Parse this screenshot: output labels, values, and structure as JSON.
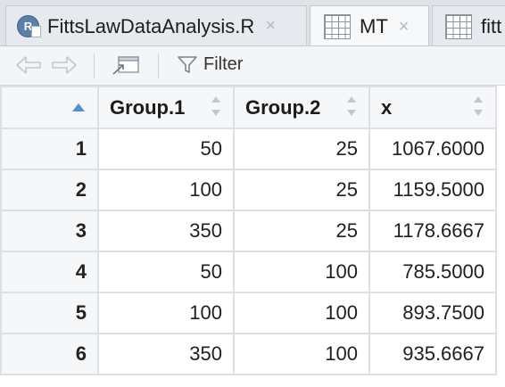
{
  "tabs": [
    {
      "label": "FittsLawDataAnalysis.R",
      "icon": "r-script-icon",
      "active": false
    },
    {
      "label": "MT",
      "icon": "data-grid-icon",
      "active": true
    },
    {
      "label": "fitt",
      "icon": "data-grid-icon",
      "active": false
    }
  ],
  "close_glyph": "×",
  "toolbar": {
    "filter_label": "Filter"
  },
  "table": {
    "columns": [
      "Group.1",
      "Group.2",
      "x"
    ],
    "rows": [
      {
        "n": "1",
        "g1": "50",
        "g2": "25",
        "x": "1067.6000"
      },
      {
        "n": "2",
        "g1": "100",
        "g2": "25",
        "x": "1159.5000"
      },
      {
        "n": "3",
        "g1": "350",
        "g2": "25",
        "x": "1178.6667"
      },
      {
        "n": "4",
        "g1": "50",
        "g2": "100",
        "x": "785.5000"
      },
      {
        "n": "5",
        "g1": "100",
        "g2": "100",
        "x": "893.7500"
      },
      {
        "n": "6",
        "g1": "350",
        "g2": "100",
        "x": "935.6667"
      }
    ]
  },
  "colors": {
    "accent": "#4f8fd6",
    "grid_line": "#dcdfe3",
    "header_bg": "#f6f7f8"
  }
}
